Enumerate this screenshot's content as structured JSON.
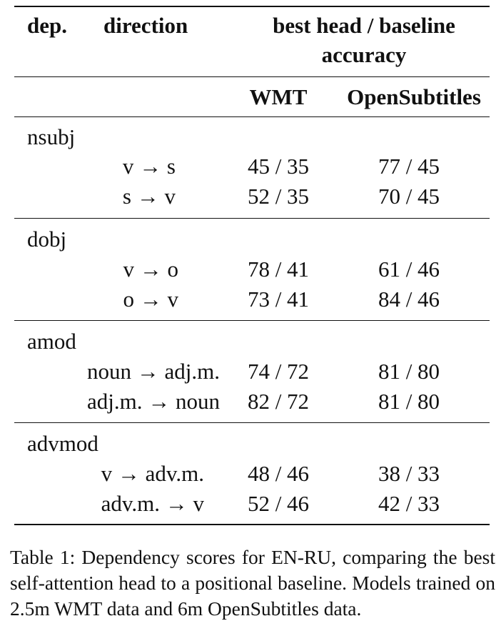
{
  "table": {
    "header": {
      "dep": "dep.",
      "direction": "direction",
      "metric_line1": "best head / baseline",
      "metric_line2": "accuracy",
      "col_wmt": "WMT",
      "col_os": "OpenSubtitles"
    },
    "groups": [
      {
        "dep": "nsubj",
        "rows": [
          {
            "direction": "v → s",
            "wmt": "45 / 35",
            "os": "77 / 45"
          },
          {
            "direction": "s → v",
            "wmt": "52 / 35",
            "os": "70 / 45"
          }
        ]
      },
      {
        "dep": "dobj",
        "rows": [
          {
            "direction": "v → o",
            "wmt": "78 / 41",
            "os": "61 / 46"
          },
          {
            "direction": "o → v",
            "wmt": "73 / 41",
            "os": "84 / 46"
          }
        ]
      },
      {
        "dep": "amod",
        "rows": [
          {
            "direction": "noun → adj.m.",
            "wmt": "74 / 72",
            "os": "81 / 80"
          },
          {
            "direction": "adj.m. → noun",
            "wmt": "82 / 72",
            "os": "81 / 80"
          }
        ]
      },
      {
        "dep": "advmod",
        "rows": [
          {
            "direction": "v → adv.m.",
            "wmt": "48 / 46",
            "os": "38 / 33"
          },
          {
            "direction": "adv.m. → v",
            "wmt": "52 / 46",
            "os": "42 / 33"
          }
        ]
      }
    ]
  },
  "caption": "Table 1: Dependency scores for EN-RU, comparing the best self-attention head to a positional baseline. Models trained on 2.5m WMT data and 6m OpenSubtitles data."
}
